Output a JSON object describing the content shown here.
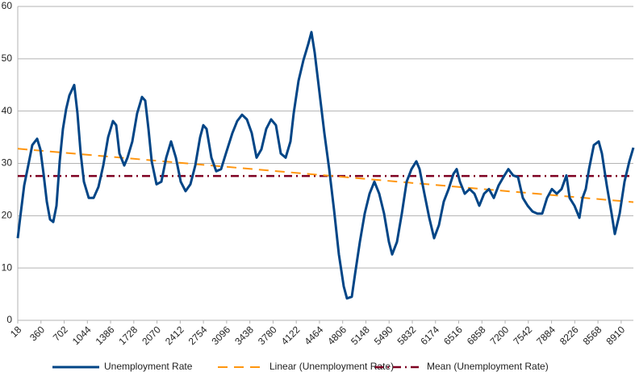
{
  "chart_data": {
    "type": "line",
    "xlim": [
      18,
      9090
    ],
    "xticks": [
      18,
      360,
      702,
      1044,
      1386,
      1728,
      2070,
      2412,
      2754,
      3096,
      3438,
      3780,
      4122,
      4464,
      4806,
      5148,
      5490,
      5832,
      6174,
      6516,
      6858,
      7200,
      7542,
      7884,
      8226,
      8568,
      8910
    ],
    "ylim": [
      0,
      60
    ],
    "yticks": [
      0,
      10,
      20,
      30,
      40,
      50,
      60
    ],
    "grid": true,
    "legend": "bottom",
    "series": [
      {
        "name": "Unemployment Rate",
        "color": "#004586",
        "dash": "solid",
        "x": [
          18,
          54,
          113,
          173,
          232,
          303,
          351,
          398,
          446,
          494,
          541,
          589,
          636,
          684,
          731,
          779,
          850,
          898,
          945,
          993,
          1064,
          1136,
          1207,
          1278,
          1350,
          1421,
          1469,
          1516,
          1587,
          1635,
          1706,
          1778,
          1849,
          1897,
          1944,
          1992,
          2063,
          2134,
          2206,
          2277,
          2348,
          2420,
          2491,
          2562,
          2634,
          2705,
          2753,
          2800,
          2872,
          2943,
          3014,
          3086,
          3181,
          3252,
          3323,
          3395,
          3466,
          3537,
          3609,
          3680,
          3751,
          3823,
          3894,
          3965,
          4037,
          4084,
          4156,
          4227,
          4298,
          4346,
          4394,
          4465,
          4536,
          4608,
          4679,
          4750,
          4822,
          4869,
          4940,
          4988,
          5059,
          5131,
          5202,
          5273,
          5345,
          5416,
          5487,
          5535,
          5606,
          5678,
          5749,
          5820,
          5892,
          5939,
          6011,
          6082,
          6153,
          6225,
          6296,
          6367,
          6439,
          6486,
          6534,
          6605,
          6676,
          6748,
          6819,
          6890,
          6962,
          7033,
          7104,
          7176,
          7247,
          7318,
          7390,
          7461,
          7533,
          7604,
          7675,
          7747,
          7818,
          7889,
          7961,
          8032,
          8103,
          8151,
          8222,
          8294,
          8341,
          8389,
          8436,
          8507,
          8579,
          8626,
          8698,
          8769,
          8817,
          8888,
          8959,
          9030,
          9090
        ],
        "values": [
          15.7,
          19.6,
          25.8,
          29.6,
          33.5,
          34.7,
          32.7,
          28,
          22.7,
          19.3,
          18.8,
          21.9,
          30.4,
          36.6,
          40.4,
          43,
          45,
          39.6,
          31.9,
          26.5,
          23.4,
          23.4,
          25.5,
          29.6,
          35,
          38.1,
          37.3,
          31.9,
          29.6,
          31.1,
          34.2,
          39.6,
          42.7,
          42,
          36.6,
          30.4,
          26,
          26.5,
          31.1,
          34.2,
          31.1,
          26.5,
          24.7,
          26,
          29.6,
          35,
          37.3,
          36.6,
          31.1,
          28.5,
          28.9,
          31.9,
          35.8,
          38.1,
          39.3,
          38.4,
          35.8,
          31.1,
          32.7,
          36.6,
          38.4,
          37.3,
          31.9,
          31.1,
          34.2,
          39.6,
          45.8,
          49.7,
          52.8,
          55.1,
          51.2,
          43.5,
          35.8,
          28.9,
          21.1,
          12.6,
          6.5,
          4.2,
          4.5,
          8.8,
          15,
          20.4,
          24.2,
          26.5,
          24.2,
          20.4,
          15,
          12.6,
          15,
          20.4,
          26.5,
          28.9,
          30.4,
          28.9,
          24.2,
          19.6,
          15.7,
          18.2,
          22.7,
          25.1,
          28,
          28.9,
          26.5,
          24.2,
          25.1,
          24.2,
          21.9,
          24.2,
          25.1,
          23.4,
          25.8,
          27.4,
          28.9,
          27.7,
          27.4,
          23.4,
          21.9,
          20.8,
          20.4,
          20.4,
          23.4,
          25.1,
          24.2,
          25.1,
          27.7,
          23.4,
          21.9,
          19.6,
          23.4,
          25.1,
          28.9,
          33.5,
          34.2,
          31.9,
          25.8,
          20.4,
          16.5,
          20.4,
          26.5,
          30.4,
          33
        ]
      },
      {
        "name": "Linear (Unemployment Rate)",
        "color": "#ff950e",
        "dash": "dash",
        "x": [
          18,
          9090
        ],
        "values": [
          32.8,
          22.6
        ]
      },
      {
        "name": "Mean (Unemployment Rate)",
        "color": "#7e0021",
        "dash": "dashdot",
        "x": [
          18,
          9090
        ],
        "values": [
          27.6,
          27.6
        ]
      }
    ]
  }
}
